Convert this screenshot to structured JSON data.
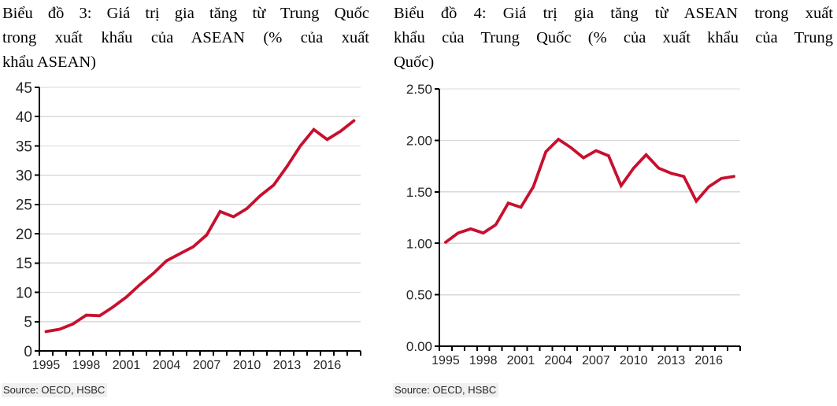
{
  "source_note": "Source: OECD, HSBC",
  "accent_color": "#C8102E",
  "grid_color": "#D9D9D9",
  "axis_color": "#000000",
  "chart_data": [
    {
      "type": "line",
      "title": "Biểu đồ 3: Giá trị gia tăng từ Trung Quốc trong xuất khẩu của ASEAN (% của xuất khẩu ASEAN)",
      "title_lines": [
        "Biểu đồ 3: Giá trị gia tăng từ Trung Quốc",
        "trong xuất khẩu của ASEAN (% của xuất",
        "khẩu ASEAN)"
      ],
      "source": "Source: OECD, HSBC",
      "legend": "none",
      "grid": true,
      "line_color": "#C8102E",
      "x": [
        1995,
        1996,
        1997,
        1998,
        1999,
        2000,
        2001,
        2002,
        2003,
        2004,
        2005,
        2006,
        2007,
        2008,
        2009,
        2010,
        2011,
        2012,
        2013,
        2014,
        2015,
        2016,
        2017,
        2018
      ],
      "values": [
        3.3,
        3.7,
        4.6,
        6.1,
        6.0,
        7.5,
        9.2,
        11.3,
        13.2,
        15.4,
        16.6,
        17.8,
        19.8,
        23.8,
        22.9,
        24.3,
        26.5,
        28.3,
        31.5,
        35.0,
        37.8,
        36.1,
        37.5,
        39.3
      ],
      "x_tick_labels": [
        "1995",
        "1998",
        "2001",
        "2004",
        "2007",
        "2010",
        "2013",
        "2016"
      ],
      "x_label_every": 3,
      "y_axis": {
        "min": 0,
        "max": 45,
        "step": 5,
        "decimals": 0
      }
    },
    {
      "type": "line",
      "title": "Biểu đồ 4: Giá trị gia tăng từ ASEAN trong xuất khẩu của Trung Quốc (% của xuất khẩu của Trung Quốc)",
      "title_lines": [
        "Biểu đồ 4: Giá trị gia tăng từ ASEAN trong xuất",
        "khẩu của Trung Quốc (% của xuất khẩu của Trung",
        "Quốc)"
      ],
      "source": "Source: OECD, HSBC",
      "legend": "none",
      "grid": true,
      "line_color": "#C8102E",
      "x": [
        1995,
        1996,
        1997,
        1998,
        1999,
        2000,
        2001,
        2002,
        2003,
        2004,
        2005,
        2006,
        2007,
        2008,
        2009,
        2010,
        2011,
        2012,
        2013,
        2014,
        2015,
        2016,
        2017,
        2018
      ],
      "values": [
        1.01,
        1.1,
        1.14,
        1.1,
        1.18,
        1.39,
        1.35,
        1.55,
        1.89,
        2.01,
        1.93,
        1.83,
        1.9,
        1.85,
        1.56,
        1.73,
        1.86,
        1.73,
        1.68,
        1.65,
        1.41,
        1.55,
        1.63,
        1.65
      ],
      "x_tick_labels": [
        "1995",
        "1998",
        "2001",
        "2004",
        "2007",
        "2010",
        "2013",
        "2016"
      ],
      "x_label_every": 3,
      "y_axis": {
        "min": 0,
        "max": 2.5,
        "step": 0.5,
        "decimals": 2
      }
    }
  ]
}
